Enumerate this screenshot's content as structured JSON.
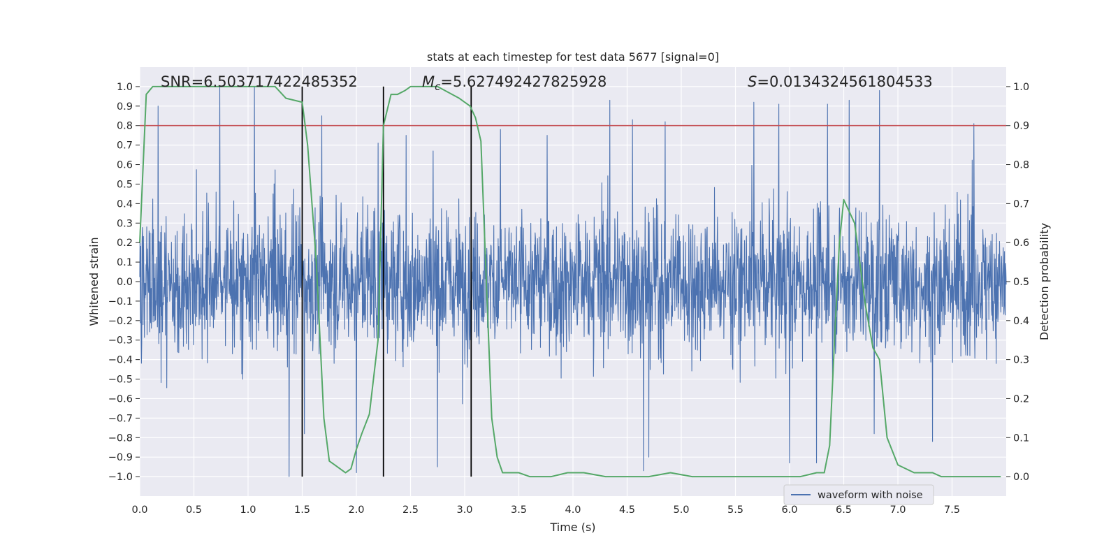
{
  "chart_data": {
    "type": "line",
    "title": "stats at each timestep for test data 5677 [signal=0]",
    "xlabel": "Time (s)",
    "ylabel_left": "Whitened strain",
    "ylabel_right": "Detection probability",
    "xlim": [
      0.0,
      8.0
    ],
    "ylim_left": [
      -1.1,
      1.1
    ],
    "ylim_right": [
      -0.05,
      1.05
    ],
    "x_ticks": [
      0.0,
      0.5,
      1.0,
      1.5,
      2.0,
      2.5,
      3.0,
      3.5,
      4.0,
      4.5,
      5.0,
      5.5,
      6.0,
      6.5,
      7.0,
      7.5
    ],
    "y_ticks_left": [
      -1.0,
      -0.9,
      -0.8,
      -0.7,
      -0.6,
      -0.5,
      -0.4,
      -0.3,
      -0.2,
      -0.1,
      0.0,
      0.1,
      0.2,
      0.3,
      0.4,
      0.5,
      0.6,
      0.7,
      0.8,
      0.9,
      1.0
    ],
    "y_ticks_right": [
      0.0,
      0.1,
      0.2,
      0.3,
      0.4,
      0.5,
      0.6,
      0.7,
      0.8,
      0.9,
      1.0
    ],
    "grid": true,
    "legend": {
      "placement": "lower-right",
      "entries": [
        "waveform with noise"
      ]
    },
    "threshold_line": {
      "axis": "right",
      "value": 0.9,
      "color": "#c44e52"
    },
    "vertical_lines": [
      1.5,
      2.25,
      3.06
    ],
    "annotations": {
      "snr": "SNR=6.503717422485352",
      "mc_symbol": "M",
      "mc_sub": "c",
      "mc_value": "=5.627492427825928",
      "s_symbol": "S",
      "s_value": "=0.0134324561804533"
    },
    "waveform": {
      "name": "waveform with noise",
      "color": "#4c72b0",
      "typical_amplitude": 0.35,
      "peak_min": -1.0,
      "peak_max": 1.0,
      "peaks": [
        [
          0.17,
          0.9
        ],
        [
          0.74,
          1.0
        ],
        [
          1.06,
          1.0
        ],
        [
          1.23,
          0.45
        ],
        [
          1.38,
          0.83
        ],
        [
          1.38,
          -1.0
        ],
        [
          1.52,
          -0.78
        ],
        [
          1.68,
          0.85
        ],
        [
          2.0,
          -0.98
        ],
        [
          2.2,
          0.71
        ],
        [
          2.46,
          0.75
        ],
        [
          2.71,
          0.67
        ],
        [
          2.75,
          -0.95
        ],
        [
          3.33,
          0.78
        ],
        [
          3.76,
          0.75
        ],
        [
          4.34,
          0.93
        ],
        [
          4.55,
          0.83
        ],
        [
          4.65,
          -0.97
        ],
        [
          4.7,
          -0.9
        ],
        [
          4.85,
          0.82
        ],
        [
          5.67,
          0.92
        ],
        [
          5.9,
          0.91
        ],
        [
          6.0,
          -0.93
        ],
        [
          6.25,
          -0.93
        ],
        [
          6.35,
          0.91
        ],
        [
          6.55,
          0.93
        ],
        [
          6.83,
          0.98
        ],
        [
          6.78,
          -0.78
        ],
        [
          7.32,
          -0.82
        ],
        [
          7.7,
          0.81
        ]
      ]
    },
    "detection_probability": {
      "color": "#55a868",
      "x": [
        0.0,
        0.06,
        0.12,
        0.25,
        0.5,
        0.75,
        1.0,
        1.25,
        1.35,
        1.5,
        1.55,
        1.63,
        1.7,
        1.75,
        1.8,
        1.85,
        1.9,
        1.95,
        2.0,
        2.05,
        2.12,
        2.2,
        2.25,
        2.32,
        2.38,
        2.45,
        2.5,
        2.75,
        2.95,
        3.05,
        3.1,
        3.15,
        3.2,
        3.25,
        3.3,
        3.35,
        3.45,
        3.5,
        3.6,
        3.8,
        3.95,
        4.1,
        4.3,
        4.5,
        4.7,
        4.9,
        5.1,
        5.3,
        5.5,
        5.7,
        5.9,
        6.1,
        6.25,
        6.32,
        6.37,
        6.42,
        6.46,
        6.5,
        6.6,
        6.7,
        6.77,
        6.83,
        6.9,
        7.0,
        7.15,
        7.25,
        7.32,
        7.4,
        7.6,
        7.8,
        7.95
      ],
      "y": [
        0.6,
        0.98,
        1.0,
        1.0,
        1.0,
        1.0,
        1.0,
        1.0,
        0.97,
        0.96,
        0.85,
        0.55,
        0.15,
        0.04,
        0.03,
        0.02,
        0.01,
        0.02,
        0.07,
        0.11,
        0.16,
        0.35,
        0.9,
        0.98,
        0.98,
        0.99,
        1.0,
        1.0,
        0.97,
        0.95,
        0.92,
        0.86,
        0.5,
        0.15,
        0.05,
        0.01,
        0.01,
        0.01,
        0.0,
        0.0,
        0.01,
        0.01,
        0.0,
        0.0,
        0.0,
        0.01,
        0.0,
        0.0,
        0.0,
        0.0,
        0.0,
        0.0,
        0.01,
        0.01,
        0.08,
        0.38,
        0.6,
        0.71,
        0.65,
        0.44,
        0.33,
        0.3,
        0.1,
        0.03,
        0.01,
        0.01,
        0.01,
        0.0,
        0.0,
        0.0,
        0.0
      ]
    }
  }
}
